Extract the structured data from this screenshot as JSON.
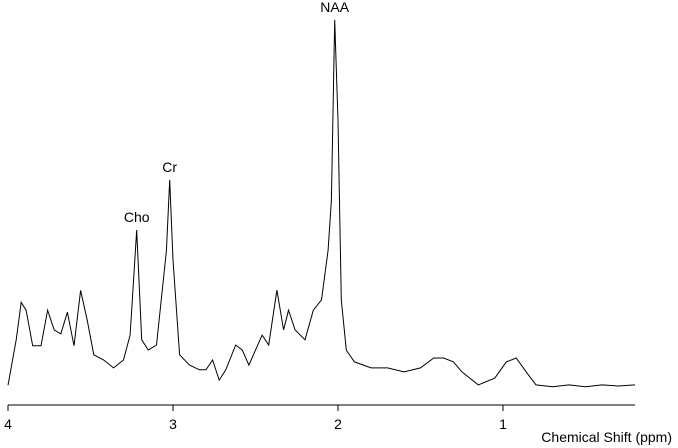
{
  "chart_data": {
    "type": "line",
    "xlabel": "Chemical Shift (ppm)",
    "xlim": [
      4,
      0.2
    ],
    "xticks": [
      4,
      3,
      2,
      1
    ],
    "ylim": [
      0,
      100
    ],
    "color": "#000000",
    "x": [
      4.0,
      3.95,
      3.92,
      3.89,
      3.85,
      3.8,
      3.76,
      3.72,
      3.68,
      3.64,
      3.6,
      3.56,
      3.52,
      3.48,
      3.42,
      3.36,
      3.3,
      3.26,
      3.22,
      3.19,
      3.15,
      3.1,
      3.04,
      3.02,
      3.0,
      2.96,
      2.9,
      2.84,
      2.8,
      2.76,
      2.72,
      2.68,
      2.62,
      2.58,
      2.54,
      2.5,
      2.46,
      2.42,
      2.37,
      2.33,
      2.3,
      2.26,
      2.2,
      2.15,
      2.1,
      2.06,
      2.04,
      2.02,
      2.0,
      1.98,
      1.95,
      1.9,
      1.8,
      1.7,
      1.6,
      1.5,
      1.42,
      1.36,
      1.3,
      1.25,
      1.15,
      1.05,
      0.98,
      0.92,
      0.86,
      0.8,
      0.7,
      0.6,
      0.5,
      0.4,
      0.3,
      0.2
    ],
    "values": [
      5,
      16.5,
      26,
      24,
      15,
      15,
      24,
      19,
      18,
      23.5,
      15,
      29,
      21.5,
      12.7,
      11.4,
      9.4,
      11.4,
      17.7,
      44.3,
      16.5,
      13.9,
      15.2,
      39,
      57,
      36.7,
      12.7,
      10.1,
      8.9,
      8.9,
      11.4,
      6.3,
      8.9,
      15.2,
      13.9,
      10.1,
      13.9,
      17.7,
      15.2,
      29.1,
      19,
      24,
      19,
      16.5,
      24,
      26.6,
      39.2,
      51.9,
      97.5,
      72,
      26.6,
      13.9,
      10.9,
      9.4,
      9.4,
      8.4,
      9.4,
      11.9,
      11.9,
      10.9,
      8.4,
      5.1,
      6.8,
      10.9,
      11.9,
      8.4,
      5.1,
      4.6,
      5.1,
      4.6,
      5.1,
      4.8,
      5.1
    ],
    "annotations": [
      {
        "text": "Cho",
        "x": 3.22,
        "y": 44.3
      },
      {
        "text": "Cr",
        "x": 3.02,
        "y": 57
      },
      {
        "text": "NAA",
        "x": 2.02,
        "y": 97.5
      }
    ]
  }
}
